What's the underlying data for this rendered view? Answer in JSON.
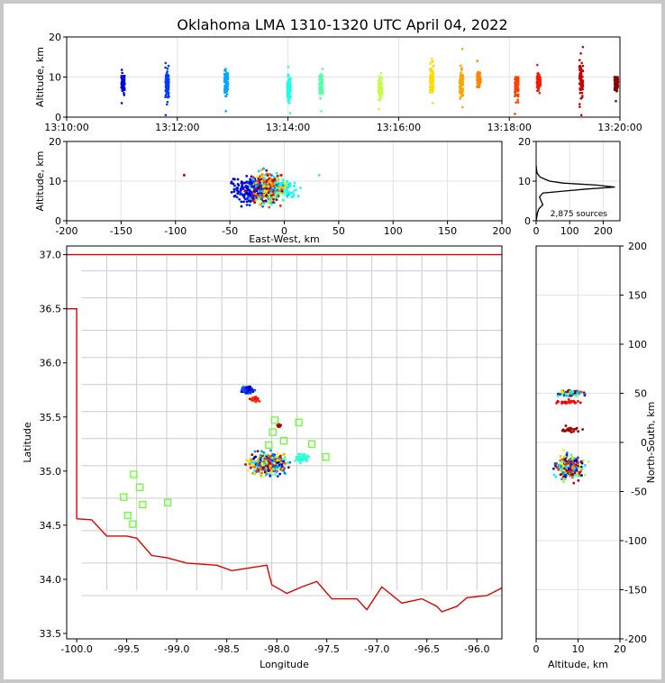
{
  "title": "Oklahoma LMA 1310-1320 UTC April 04, 2022",
  "sources_label": "2,875 sources",
  "chart_data": [
    {
      "id": "time_height",
      "type": "scatter",
      "xlabel": "",
      "ylabel": "Altitude, km",
      "xlim": [
        "13:10:00",
        "13:20:00"
      ],
      "ylim": [
        0,
        20
      ],
      "xticks": [
        "13:10:00",
        "13:12:00",
        "13:14:00",
        "13:16:00",
        "13:18:00",
        "13:20:00"
      ],
      "yticks": [
        0,
        10,
        20
      ],
      "colormap": "jet (time)",
      "clusters": [
        {
          "time": "13:11:01",
          "alt_min": 3.5,
          "alt_max": 11.8,
          "alt_center": 8.5
        },
        {
          "time": "13:11:49",
          "alt_min": 0.5,
          "alt_max": 13.5,
          "alt_center": 8.5
        },
        {
          "time": "13:12:53",
          "alt_min": 1.5,
          "alt_max": 12.0,
          "alt_center": 8.5
        },
        {
          "time": "13:14:01",
          "alt_min": 1.0,
          "alt_max": 12.5,
          "alt_center": 7.0
        },
        {
          "time": "13:14:36",
          "alt_min": 1.5,
          "alt_max": 12.0,
          "alt_center": 7.5
        },
        {
          "time": "13:15:40",
          "alt_min": 2.0,
          "alt_max": 11.0,
          "alt_center": 7.0
        },
        {
          "time": "13:16:36",
          "alt_min": 3.5,
          "alt_max": 14.5,
          "alt_center": 9.5
        },
        {
          "time": "13:17:08",
          "alt_min": 2.5,
          "alt_max": 17.0,
          "alt_center": 8.5
        },
        {
          "time": "13:17:27",
          "alt_min": 7.5,
          "alt_max": 14.0,
          "alt_center": 9.5
        },
        {
          "time": "13:18:08",
          "alt_min": 0.8,
          "alt_max": 10.0,
          "alt_center": 7.5
        },
        {
          "time": "13:18:32",
          "alt_min": 6.0,
          "alt_max": 13.0,
          "alt_center": 9.0
        },
        {
          "time": "13:19:18",
          "alt_min": 0.5,
          "alt_max": 17.5,
          "alt_center": 9.0
        },
        {
          "time": "13:19:56",
          "alt_min": 4.0,
          "alt_max": 10.0,
          "alt_center": 8.5
        }
      ]
    },
    {
      "id": "ew_height",
      "type": "scatter",
      "xlabel": "East-West, km",
      "ylabel": "Altitude, km",
      "xlim": [
        -200,
        200
      ],
      "ylim": [
        0,
        20
      ],
      "xticks": [
        -200,
        -150,
        -100,
        -50,
        0,
        50,
        100,
        150,
        200
      ],
      "yticks": [
        0,
        10,
        20
      ]
    },
    {
      "id": "altitude_histogram",
      "type": "line",
      "xlim": [
        0,
        250
      ],
      "ylim": [
        0,
        20
      ],
      "xticks": [
        0,
        100,
        200
      ],
      "yticks": [
        0,
        10,
        20
      ],
      "profile": [
        {
          "alt": 0,
          "count": 0
        },
        {
          "alt": 1,
          "count": 2
        },
        {
          "alt": 2,
          "count": 4
        },
        {
          "alt": 3,
          "count": 8
        },
        {
          "alt": 4,
          "count": 20
        },
        {
          "alt": 5,
          "count": 15
        },
        {
          "alt": 6,
          "count": 10
        },
        {
          "alt": 7,
          "count": 20
        },
        {
          "alt": 8,
          "count": 150
        },
        {
          "alt": 8.5,
          "count": 235
        },
        {
          "alt": 9,
          "count": 180
        },
        {
          "alt": 9.5,
          "count": 80
        },
        {
          "alt": 10,
          "count": 40
        },
        {
          "alt": 11,
          "count": 12
        },
        {
          "alt": 12,
          "count": 3
        },
        {
          "alt": 13,
          "count": 1
        },
        {
          "alt": 14,
          "count": 0
        }
      ]
    },
    {
      "id": "plan_view",
      "type": "scatter",
      "xlabel": "Longitude",
      "ylabel": "Latitude",
      "xlim": [
        -100.1,
        -95.75
      ],
      "ylim": [
        33.45,
        37.08
      ],
      "xticks": [
        -100.0,
        -99.5,
        -99.0,
        -98.5,
        -98.0,
        -97.5,
        -97.0,
        -96.5,
        -96.0
      ],
      "yticks": [
        33.5,
        34.0,
        34.5,
        35.0,
        35.5,
        36.0,
        36.5,
        37.0
      ],
      "stations": [
        {
          "lon": -99.43,
          "lat": 34.97
        },
        {
          "lon": -99.37,
          "lat": 34.85
        },
        {
          "lon": -99.53,
          "lat": 34.76
        },
        {
          "lon": -99.34,
          "lat": 34.69
        },
        {
          "lon": -99.49,
          "lat": 34.59
        },
        {
          "lon": -99.44,
          "lat": 34.51
        },
        {
          "lon": -99.09,
          "lat": 34.71
        },
        {
          "lon": -98.02,
          "lat": 35.47
        },
        {
          "lon": -97.78,
          "lat": 35.45
        },
        {
          "lon": -98.04,
          "lat": 35.36
        },
        {
          "lon": -97.93,
          "lat": 35.28
        },
        {
          "lon": -98.08,
          "lat": 35.24
        },
        {
          "lon": -97.65,
          "lat": 35.25
        },
        {
          "lon": -97.51,
          "lat": 35.13
        }
      ]
    },
    {
      "id": "ns_height",
      "type": "scatter",
      "xlabel": "Altitude, km",
      "ylabel": "North-South, km",
      "xlim": [
        0,
        20
      ],
      "ylim": [
        -200,
        200
      ],
      "xticks": [
        0,
        10,
        20
      ],
      "yticks": [
        -200,
        -150,
        -100,
        -50,
        0,
        50,
        100,
        150,
        200
      ]
    }
  ]
}
